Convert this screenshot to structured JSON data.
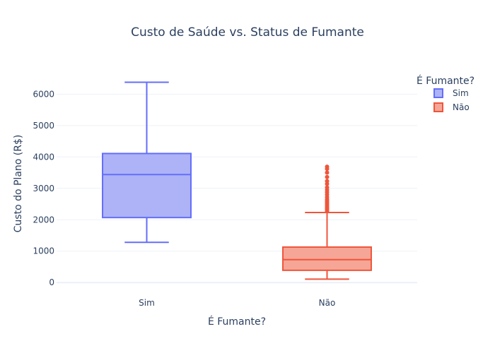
{
  "chart_data": {
    "type": "box",
    "title": "Custo de Saúde vs. Status de Fumante",
    "xlabel": "É Fumante?",
    "ylabel": "Custo do Plano (R$)",
    "ylim": [
      -400,
      6750
    ],
    "yticks": [
      0,
      1000,
      2000,
      3000,
      4000,
      5000,
      6000
    ],
    "categories": [
      "Sim",
      "Não"
    ],
    "grid": true,
    "legend": {
      "title": "É Fumante?",
      "position": "top-right"
    },
    "series": [
      {
        "name": "Sim",
        "color": "#636efa",
        "fill": "#aeb3f7",
        "min": 1280,
        "q1": 2070,
        "median": 3440,
        "q3": 4110,
        "max": 6380,
        "outliers": []
      },
      {
        "name": "Não",
        "color": "#ef553b",
        "fill": "#f6a697",
        "min": 110,
        "q1": 390,
        "median": 730,
        "q3": 1130,
        "max": 2230,
        "outliers": [
          2270,
          2320,
          2360,
          2400,
          2450,
          2500,
          2550,
          2600,
          2650,
          2720,
          2800,
          2880,
          2950,
          3030,
          3140,
          3230,
          3360,
          3500,
          3620,
          3690
        ]
      }
    ]
  }
}
